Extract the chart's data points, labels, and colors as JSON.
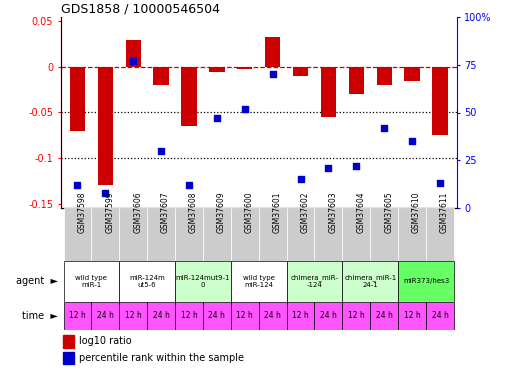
{
  "title": "GDS1858 / 10000546504",
  "samples": [
    "GSM37598",
    "GSM37599",
    "GSM37606",
    "GSM37607",
    "GSM37608",
    "GSM37609",
    "GSM37600",
    "GSM37601",
    "GSM37602",
    "GSM37603",
    "GSM37604",
    "GSM37605",
    "GSM37610",
    "GSM37611"
  ],
  "log10_ratio": [
    -0.07,
    -0.13,
    0.03,
    -0.02,
    -0.065,
    -0.005,
    -0.002,
    0.033,
    -0.01,
    -0.055,
    -0.03,
    -0.02,
    -0.015,
    -0.075
  ],
  "percentile_rank": [
    12,
    8,
    77,
    30,
    12,
    47,
    52,
    70,
    15,
    21,
    22,
    42,
    35,
    13
  ],
  "agent_groups": [
    {
      "label": "wild type\nmiR-1",
      "cols": [
        0,
        1
      ],
      "color": "#ffffff"
    },
    {
      "label": "miR-124m\nut5-6",
      "cols": [
        2,
        3
      ],
      "color": "#ffffff"
    },
    {
      "label": "miR-124mut9-1\n0",
      "cols": [
        4,
        5
      ],
      "color": "#ccffcc"
    },
    {
      "label": "wild type\nmiR-124",
      "cols": [
        6,
        7
      ],
      "color": "#ffffff"
    },
    {
      "label": "chimera_miR-\n-124",
      "cols": [
        8,
        9
      ],
      "color": "#ccffcc"
    },
    {
      "label": "chimera_miR-1\n24-1",
      "cols": [
        10,
        11
      ],
      "color": "#ccffcc"
    },
    {
      "label": "miR373/hes3",
      "cols": [
        12,
        13
      ],
      "color": "#66ff66"
    }
  ],
  "time_labels": [
    "12 h",
    "24 h",
    "12 h",
    "24 h",
    "12 h",
    "24 h",
    "12 h",
    "24 h",
    "12 h",
    "24 h",
    "12 h",
    "24 h",
    "12 h",
    "24 h"
  ],
  "time_color": "#ff55ff",
  "sample_bg": "#cccccc",
  "ylim_left": [
    -0.155,
    0.055
  ],
  "ylim_right": [
    0,
    100
  ],
  "yticks_left": [
    0.05,
    0.0,
    -0.05,
    -0.1,
    -0.15
  ],
  "yticks_right": [
    100,
    75,
    50,
    25,
    0
  ],
  "ytick_labels_left": [
    "0.05",
    "0",
    "-0.05",
    "-0.1",
    "-0.15"
  ],
  "ytick_labels_right": [
    "100%",
    "75",
    "50",
    "25",
    "0"
  ],
  "bar_color": "#cc0000",
  "scatter_color": "#0000cc",
  "dashed_color": "#cc0000",
  "dotted_color": "#000000"
}
